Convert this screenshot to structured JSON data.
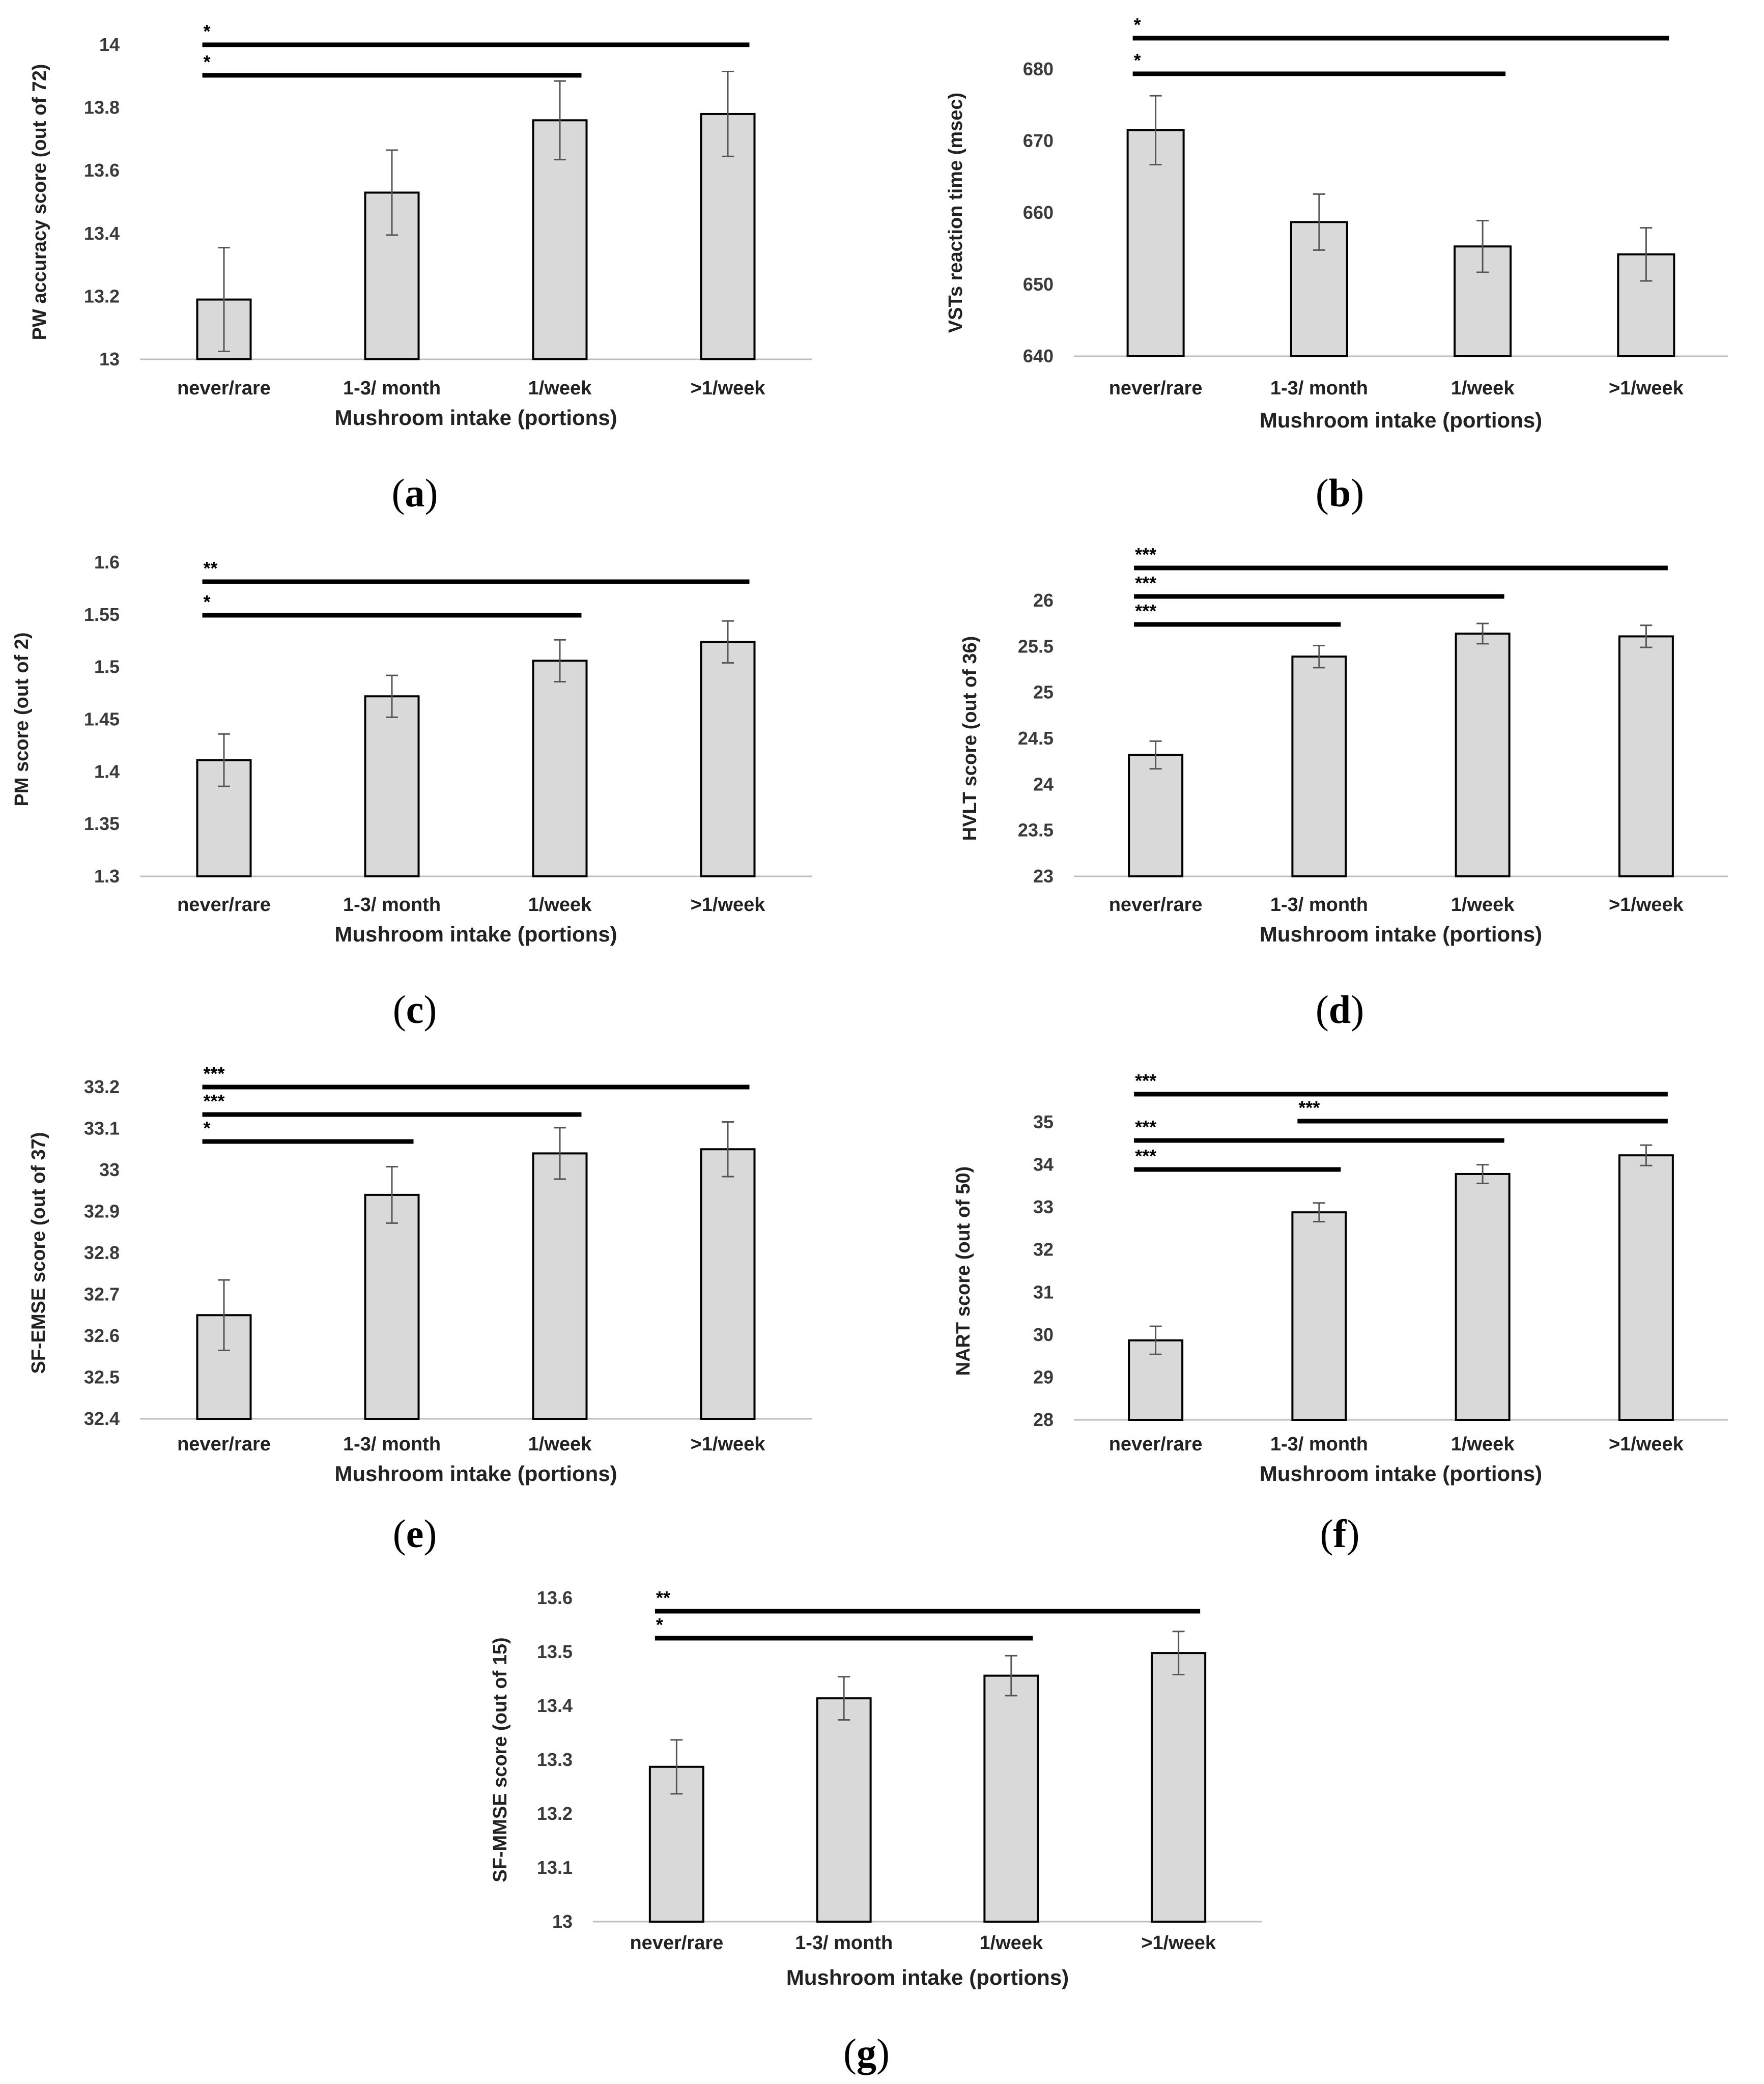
{
  "figure": {
    "colors": {
      "bar_fill": "#d9d9d9",
      "bar_stroke": "#000000",
      "error_bar": "#555555",
      "axis": "#bfbfbf",
      "significance_line": "#000000"
    }
  },
  "chart_data": [
    {
      "panel": "a",
      "type": "bar",
      "title": "",
      "categories": [
        "never/rare",
        "1-3/ month",
        "1/week",
        ">1/week"
      ],
      "values": [
        13.19,
        13.53,
        13.76,
        13.78
      ],
      "errors": [
        0.165,
        0.135,
        0.125,
        0.135
      ],
      "xlabel": "Mushroom intake (portions)",
      "ylabel": "PW accuracy score (out of 72)",
      "ylim": [
        13,
        14
      ],
      "yticks": [
        13,
        13.2,
        13.4,
        13.6,
        13.8,
        14
      ],
      "ytick_labels": [
        "13",
        "13.2",
        "13.4",
        "13.6",
        "13.8",
        "14"
      ],
      "grid": false,
      "significance": [
        {
          "from": 0,
          "to": 3,
          "label": "*"
        },
        {
          "from": 0,
          "to": 2,
          "label": "*"
        }
      ]
    },
    {
      "panel": "b",
      "type": "bar",
      "title": "",
      "categories": [
        "never/rare",
        "1-3/ month",
        "1/week",
        ">1/week"
      ],
      "values": [
        671.5,
        658.7,
        655.3,
        654.2
      ],
      "errors": [
        4.8,
        3.9,
        3.6,
        3.7
      ],
      "xlabel": "Mushroom intake (portions)",
      "ylabel": "VSTs reaction time (msec)",
      "ylim": [
        640,
        680
      ],
      "yticks": [
        640,
        650,
        660,
        670,
        680
      ],
      "ytick_labels": [
        "640",
        "650",
        "660",
        "670",
        "680"
      ],
      "grid": false,
      "significance": [
        {
          "from": 0,
          "to": 3,
          "label": "*"
        },
        {
          "from": 0,
          "to": 2,
          "label": "*"
        }
      ]
    },
    {
      "panel": "c",
      "type": "bar",
      "title": "",
      "categories": [
        "never/rare",
        "1-3/ month",
        "1/week",
        ">1/week"
      ],
      "values": [
        1.411,
        1.472,
        1.506,
        1.524
      ],
      "errors": [
        0.025,
        0.02,
        0.02,
        0.02
      ],
      "xlabel": "Mushroom intake (portions)",
      "ylabel": "PM score (out of 2)",
      "ylim": [
        1.3,
        1.6
      ],
      "yticks": [
        1.3,
        1.35,
        1.4,
        1.45,
        1.5,
        1.55,
        1.6
      ],
      "ytick_labels": [
        "1.3",
        "1.35",
        "1.4",
        "1.45",
        "1.5",
        "1.55",
        "1.6"
      ],
      "grid": false,
      "significance": [
        {
          "from": 0,
          "to": 3,
          "label": "**"
        },
        {
          "from": 0,
          "to": 2,
          "label": "*"
        }
      ]
    },
    {
      "panel": "d",
      "type": "bar",
      "title": "",
      "categories": [
        "never/rare",
        "1-3/ month",
        "1/week",
        ">1/week"
      ],
      "values": [
        24.32,
        25.39,
        25.64,
        25.61
      ],
      "errors": [
        0.15,
        0.12,
        0.11,
        0.12
      ],
      "xlabel": "Mushroom intake (portions)",
      "ylabel": "HVLT score (out of 36)",
      "ylim": [
        23,
        26
      ],
      "yticks": [
        23,
        23.5,
        24,
        24.5,
        25,
        25.5,
        26
      ],
      "ytick_labels": [
        "23",
        "23.5",
        "24",
        "24.5",
        "25",
        "25.5",
        "26"
      ],
      "grid": false,
      "significance": [
        {
          "from": 0,
          "to": 3,
          "label": "***"
        },
        {
          "from": 0,
          "to": 2,
          "label": "***"
        },
        {
          "from": 0,
          "to": 1,
          "label": "***"
        }
      ]
    },
    {
      "panel": "e",
      "type": "bar",
      "title": "",
      "categories": [
        "never/rare",
        "1-3/ month",
        "1/week",
        ">1/week"
      ],
      "values": [
        32.65,
        32.94,
        33.04,
        33.05
      ],
      "errors": [
        0.085,
        0.068,
        0.062,
        0.066
      ],
      "xlabel": "Mushroom intake (portions)",
      "ylabel": "SF-EMSE score (out of 37)",
      "ylim": [
        32.4,
        33.2
      ],
      "yticks": [
        32.4,
        32.5,
        32.6,
        32.7,
        32.8,
        32.9,
        33,
        33.1,
        33.2
      ],
      "ytick_labels": [
        "32.4",
        "32.5",
        "32.6",
        "32.7",
        "32.8",
        "32.9",
        "33",
        "33.1",
        "33.2"
      ],
      "grid": false,
      "significance": [
        {
          "from": 0,
          "to": 3,
          "label": "***"
        },
        {
          "from": 0,
          "to": 2,
          "label": "***"
        },
        {
          "from": 0,
          "to": 1,
          "label": "*"
        }
      ]
    },
    {
      "panel": "f",
      "type": "bar",
      "title": "",
      "categories": [
        "never/rare",
        "1-3/ month",
        "1/week",
        ">1/week"
      ],
      "values": [
        29.87,
        32.88,
        33.78,
        34.22
      ],
      "errors": [
        0.33,
        0.22,
        0.22,
        0.24
      ],
      "xlabel": "Mushroom intake (portions)",
      "ylabel": "NART score (out of 50)",
      "ylim": [
        28,
        35
      ],
      "yticks": [
        28,
        29,
        30,
        31,
        32,
        33,
        34,
        35
      ],
      "ytick_labels": [
        "28",
        "29",
        "30",
        "31",
        "32",
        "33",
        "34",
        "35"
      ],
      "grid": false,
      "significance": [
        {
          "from": 0,
          "to": 3,
          "label": "***"
        },
        {
          "from": 1,
          "to": 3,
          "label": "***"
        },
        {
          "from": 0,
          "to": 2,
          "label": "***"
        },
        {
          "from": 0,
          "to": 1,
          "label": "***"
        }
      ]
    },
    {
      "panel": "g",
      "type": "bar",
      "title": "",
      "categories": [
        "never/rare",
        "1-3/ month",
        "1/week",
        ">1/week"
      ],
      "values": [
        13.287,
        13.414,
        13.456,
        13.498
      ],
      "errors": [
        0.05,
        0.04,
        0.037,
        0.04
      ],
      "xlabel": "Mushroom intake (portions)",
      "ylabel": "SF-MMSE score (out of 15)",
      "ylim": [
        13,
        13.6
      ],
      "yticks": [
        13,
        13.1,
        13.2,
        13.3,
        13.4,
        13.5,
        13.6
      ],
      "ytick_labels": [
        "13",
        "13.1",
        "13.2",
        "13.3",
        "13.4",
        "13.5",
        "13.6"
      ],
      "grid": false,
      "significance": [
        {
          "from": 0,
          "to": 3,
          "label": "**"
        },
        {
          "from": 0,
          "to": 2,
          "label": "*"
        }
      ]
    }
  ],
  "panel_labels": [
    {
      "open": "(",
      "letter": "a",
      "close": ")"
    },
    {
      "open": "(",
      "letter": "b",
      "close": ")"
    },
    {
      "open": "(",
      "letter": "c",
      "close": ")"
    },
    {
      "open": "(",
      "letter": "d",
      "close": ")"
    },
    {
      "open": "(",
      "letter": "e",
      "close": ")"
    },
    {
      "open": "(",
      "letter": "f",
      "close": ")"
    },
    {
      "open": "(",
      "letter": "g",
      "close": ")"
    }
  ]
}
